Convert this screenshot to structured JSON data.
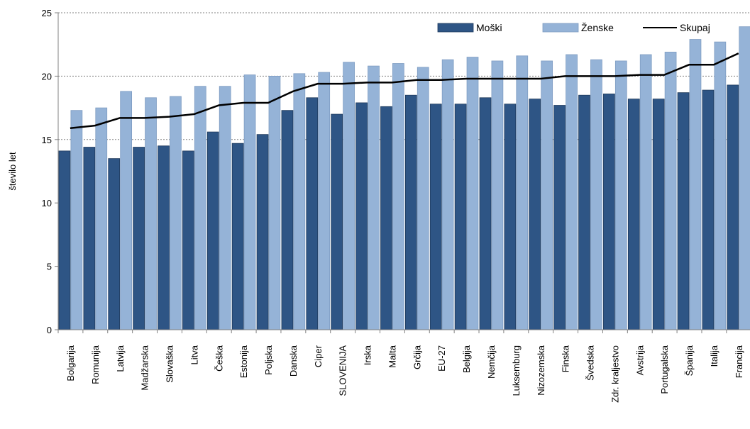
{
  "chart_data": {
    "type": "bar",
    "title": "",
    "xlabel": "",
    "ylabel": "število let",
    "ylim": [
      0,
      25
    ],
    "yticks": [
      0,
      5,
      10,
      15,
      20,
      25
    ],
    "grid": "horizontal dotted at 15, 20, 25",
    "legend_position": "top-right",
    "categories": [
      "Bolgarija",
      "Romunija",
      "Latvija",
      "Madžarska",
      "Slovaška",
      "Litva",
      "Češka",
      "Estonija",
      "Poljska",
      "Danska",
      "Ciper",
      "SLOVENIJA",
      "Irska",
      "Malta",
      "Grčija",
      "EU-27",
      "Belgija",
      "Nemčija",
      "Luksemburg",
      "Nizozemska",
      "Finska",
      "Švedska",
      "Zdr. kraljestvo",
      "Avstrija",
      "Portugalska",
      "Španija",
      "Italija",
      "Francija"
    ],
    "series": [
      {
        "name": "Moški",
        "type": "bar",
        "color": "#2e5585",
        "values": [
          14.1,
          14.4,
          13.5,
          14.4,
          14.5,
          14.1,
          15.6,
          14.7,
          15.4,
          17.3,
          18.3,
          17.0,
          17.9,
          17.6,
          18.5,
          17.8,
          17.8,
          18.3,
          17.8,
          18.2,
          17.7,
          18.5,
          18.6,
          18.2,
          18.2,
          18.7,
          18.9,
          19.3
        ]
      },
      {
        "name": "Ženske",
        "type": "bar",
        "color": "#95b3d7",
        "values": [
          17.3,
          17.5,
          18.8,
          18.3,
          18.4,
          19.2,
          19.2,
          20.1,
          20.0,
          20.2,
          20.3,
          21.1,
          20.8,
          21.0,
          20.7,
          21.3,
          21.5,
          21.2,
          21.6,
          21.2,
          21.7,
          21.3,
          21.2,
          21.7,
          21.9,
          22.9,
          22.7,
          23.9
        ]
      },
      {
        "name": "Skupaj",
        "type": "line",
        "color": "#000000",
        "values": [
          15.9,
          16.1,
          16.7,
          16.7,
          16.8,
          17.0,
          17.7,
          17.9,
          17.9,
          18.8,
          19.4,
          19.4,
          19.5,
          19.5,
          19.7,
          19.7,
          19.8,
          19.8,
          19.8,
          19.8,
          20.0,
          20.0,
          20.0,
          20.1,
          20.1,
          20.9,
          20.9,
          21.8
        ]
      }
    ]
  }
}
